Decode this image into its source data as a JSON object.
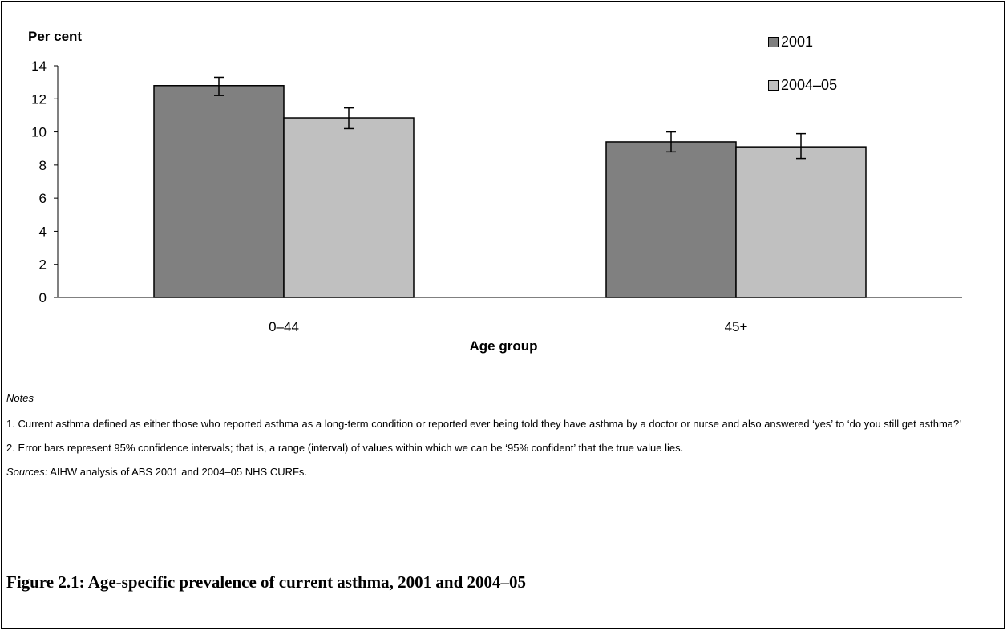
{
  "chart_data": {
    "type": "bar",
    "ylabel": "Per cent",
    "xlabel": "Age group",
    "categories": [
      "0–44",
      "45+"
    ],
    "series": [
      {
        "name": "2001",
        "values": [
          12.8,
          9.4
        ],
        "err_low": [
          12.2,
          8.8
        ],
        "err_high": [
          13.3,
          10.0
        ],
        "color": "#808080"
      },
      {
        "name": "2004–05",
        "values": [
          10.85,
          9.1
        ],
        "err_low": [
          10.2,
          8.4
        ],
        "err_high": [
          11.45,
          9.9
        ],
        "color": "#c0c0c0"
      }
    ],
    "ylim": [
      0,
      14
    ],
    "yticks": [
      "0",
      "2",
      "4",
      "6",
      "8",
      "10",
      "12",
      "14"
    ],
    "grid": false,
    "legend_position": "top-right"
  },
  "notes": {
    "title": "Notes",
    "items": [
      "1. Current asthma defined as either those who reported asthma as a long-term condition or reported ever being told they have asthma by a doctor or nurse and also answered ‘yes’ to ‘do you still get asthma?’",
      "2. Error bars represent 95% confidence intervals; that is, a range (interval) of values within which we can be ‘95% confident’ that the true value lies."
    ],
    "sources_label": "Sources:",
    "sources_text": " AIHW analysis of ABS 2001 and 2004–05 NHS CURFs."
  },
  "figure_title": "Figure 2.1: Age-specific prevalence of current asthma, 2001 and 2004–05"
}
